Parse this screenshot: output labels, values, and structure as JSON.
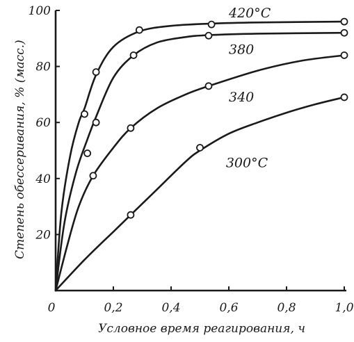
{
  "chart_data": {
    "type": "line",
    "title": "",
    "xlabel": "Условное время реагирования, ч",
    "ylabel": "Степень обессеривания, % (масс.)",
    "xlim": [
      0,
      1.0
    ],
    "ylim": [
      0,
      100
    ],
    "x_ticks": [
      0,
      0.2,
      0.4,
      0.6,
      0.8,
      1.0
    ],
    "x_tick_labels": [
      "0",
      "0,2",
      "0,4",
      "0,6",
      "0,8",
      "1,0"
    ],
    "y_ticks": [
      20,
      40,
      60,
      80,
      100
    ],
    "y_tick_labels": [
      "20",
      "40",
      "60",
      "80",
      "100"
    ],
    "grid": false,
    "series": [
      {
        "name": "420°C",
        "points": [
          [
            0.1,
            63
          ],
          [
            0.14,
            78
          ],
          [
            0.29,
            93
          ],
          [
            0.54,
            95
          ],
          [
            1.0,
            96
          ]
        ],
        "curve": [
          [
            0,
            0
          ],
          [
            0.02,
            28
          ],
          [
            0.05,
            48
          ],
          [
            0.08,
            60
          ],
          [
            0.1,
            65
          ],
          [
            0.14,
            77
          ],
          [
            0.2,
            87
          ],
          [
            0.29,
            92.5
          ],
          [
            0.4,
            94.5
          ],
          [
            0.54,
            95.3
          ],
          [
            0.7,
            95.7
          ],
          [
            1.0,
            96
          ]
        ]
      },
      {
        "name": "380",
        "points": [
          [
            0.11,
            49
          ],
          [
            0.14,
            60
          ],
          [
            0.27,
            84
          ],
          [
            0.53,
            91
          ],
          [
            1.0,
            92
          ]
        ],
        "curve": [
          [
            0,
            0
          ],
          [
            0.03,
            24
          ],
          [
            0.07,
            42
          ],
          [
            0.11,
            54
          ],
          [
            0.14,
            62
          ],
          [
            0.2,
            76
          ],
          [
            0.27,
            84
          ],
          [
            0.35,
            88.5
          ],
          [
            0.45,
            90.5
          ],
          [
            0.53,
            91.2
          ],
          [
            0.7,
            91.7
          ],
          [
            1.0,
            92
          ]
        ]
      },
      {
        "name": "340",
        "points": [
          [
            0.13,
            41
          ],
          [
            0.26,
            58
          ],
          [
            0.53,
            73
          ],
          [
            1.0,
            84
          ]
        ],
        "curve": [
          [
            0,
            0
          ],
          [
            0.04,
            16
          ],
          [
            0.08,
            30
          ],
          [
            0.13,
            41
          ],
          [
            0.2,
            51
          ],
          [
            0.26,
            58
          ],
          [
            0.35,
            65
          ],
          [
            0.45,
            70
          ],
          [
            0.53,
            73
          ],
          [
            0.7,
            78.5
          ],
          [
            0.85,
            82
          ],
          [
            1.0,
            84
          ]
        ]
      },
      {
        "name": "300°C",
        "points": [
          [
            0.26,
            27
          ],
          [
            0.5,
            51
          ],
          [
            1.0,
            69
          ]
        ],
        "curve": [
          [
            0,
            0
          ],
          [
            0.1,
            11
          ],
          [
            0.2,
            21
          ],
          [
            0.26,
            27
          ],
          [
            0.35,
            36
          ],
          [
            0.45,
            46
          ],
          [
            0.5,
            50
          ],
          [
            0.6,
            56
          ],
          [
            0.7,
            60
          ],
          [
            0.8,
            63.5
          ],
          [
            0.9,
            66.5
          ],
          [
            1.0,
            69
          ]
        ]
      }
    ]
  }
}
